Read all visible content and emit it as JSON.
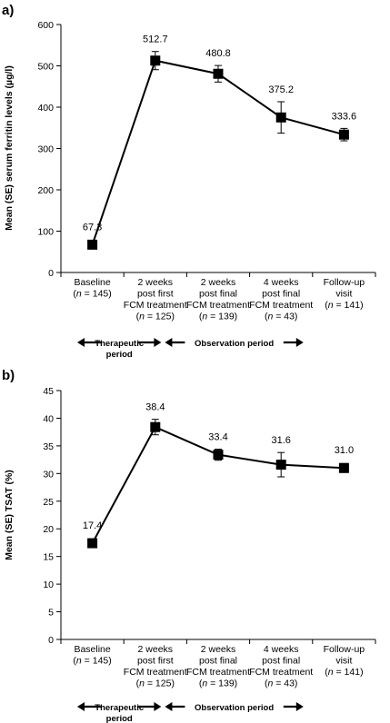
{
  "chart_data": [
    {
      "type": "line",
      "panel_label": "a)",
      "ylabel": "Mean (SE) serum ferritin levels (µg/l)",
      "ylim": [
        0,
        600
      ],
      "yticks": [
        0,
        100,
        200,
        300,
        400,
        500,
        600
      ],
      "categories": [
        [
          "Baseline",
          "(n = 145)"
        ],
        [
          "2 weeks",
          "post first",
          "FCM treatment",
          "(n = 125)"
        ],
        [
          "2 weeks",
          "post final",
          "FCM treatment",
          "(n = 139)"
        ],
        [
          "4 weeks",
          "post final",
          "FCM treatment",
          "(n = 43)"
        ],
        [
          "Follow-up",
          "visit",
          "(n = 141)"
        ]
      ],
      "values": [
        67.3,
        512.7,
        480.8,
        375.2,
        333.6
      ],
      "value_labels": [
        "67.3",
        "512.7",
        "480.8",
        "375.2",
        "333.6"
      ],
      "se": [
        8,
        22,
        20,
        38,
        15
      ],
      "periods": [
        [
          "Therapeutic",
          "period"
        ],
        [
          "Observation period"
        ]
      ]
    },
    {
      "type": "line",
      "panel_label": "b)",
      "ylabel": "Mean (SE) TSAT (%)",
      "ylim": [
        0,
        45
      ],
      "yticks": [
        0,
        5,
        10,
        15,
        20,
        25,
        30,
        35,
        40,
        45
      ],
      "categories": [
        [
          "Baseline",
          "(n = 145)"
        ],
        [
          "2 weeks",
          "post first",
          "FCM treatment",
          "(n = 125)"
        ],
        [
          "2 weeks",
          "post final",
          "FCM treatment",
          "(n = 139)"
        ],
        [
          "4 weeks",
          "post final",
          "FCM treatment",
          "(n = 43)"
        ],
        [
          "Follow-up",
          "visit",
          "(n = 141)"
        ]
      ],
      "values": [
        17.4,
        38.4,
        33.4,
        31.6,
        31.0
      ],
      "value_labels": [
        "17.4",
        "38.4",
        "33.4",
        "31.6",
        "31.0"
      ],
      "se": [
        0.5,
        1.4,
        1.0,
        2.2,
        0.8
      ],
      "periods": [
        [
          "Therapeutic",
          "period"
        ],
        [
          "Observation period"
        ]
      ]
    }
  ]
}
